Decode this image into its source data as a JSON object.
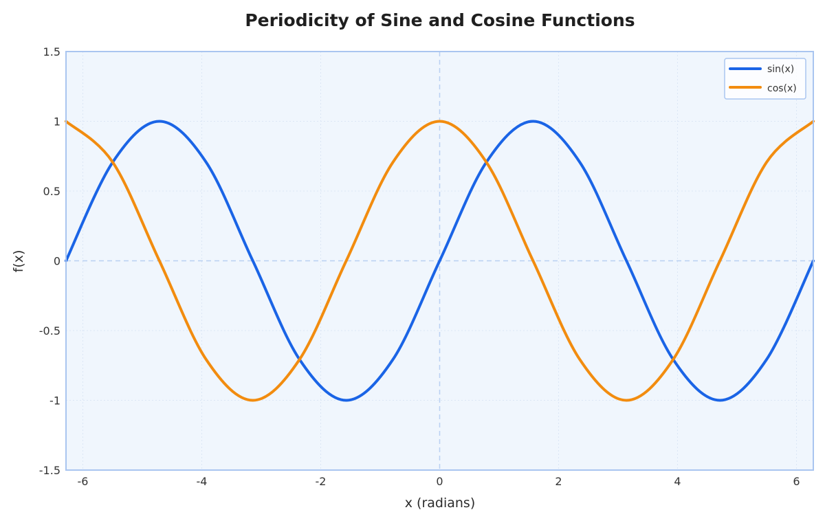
{
  "chart_data": {
    "type": "line",
    "title": "Periodicity of Sine and Cosine Functions",
    "xlabel": "x (radians)",
    "ylabel": "f(x)",
    "xlim": [
      -6.283185,
      6.283185
    ],
    "ylim": [
      -1.5,
      1.5
    ],
    "xticks": [
      -6,
      -4,
      -2,
      0,
      2,
      4,
      6
    ],
    "xtick_labels": [
      "-6",
      "-4",
      "-2",
      "0",
      "2",
      "4",
      "6"
    ],
    "yticks": [
      1.5,
      1,
      0.5,
      0,
      -0.5,
      -1,
      -1.5
    ],
    "ytick_labels": [
      "1.5",
      "1",
      "0.5",
      "0",
      "-0.5",
      "-1",
      "-1.5"
    ],
    "grid": true,
    "legend_position": "top-right",
    "x": [
      -6.2832,
      -5.4978,
      -4.7124,
      -3.927,
      -3.1416,
      -2.3562,
      -1.5708,
      -0.7854,
      0,
      0.7854,
      1.5708,
      2.3562,
      3.1416,
      3.927,
      4.7124,
      5.4978,
      6.2832
    ],
    "series": [
      {
        "name": "sin(x)",
        "color": "#1a64e6",
        "values": [
          0,
          0.7071,
          1,
          0.7071,
          0,
          -0.7071,
          -1,
          -0.7071,
          0,
          0.7071,
          1,
          0.7071,
          0,
          -0.7071,
          -1,
          -0.7071,
          0
        ]
      },
      {
        "name": "cos(x)",
        "color": "#f28c0f",
        "values": [
          1,
          0.7071,
          0,
          -0.7071,
          -1,
          -0.7071,
          0,
          0.7071,
          1,
          0.7071,
          0,
          -0.7071,
          -1,
          -0.7071,
          0,
          0.7071,
          1
        ]
      }
    ]
  },
  "colors": {
    "plot_background": "#f0f6fd",
    "plot_border": "#a9c5f0",
    "grid": "#dbe6f5",
    "zero_lines": "#b9d0f2"
  }
}
